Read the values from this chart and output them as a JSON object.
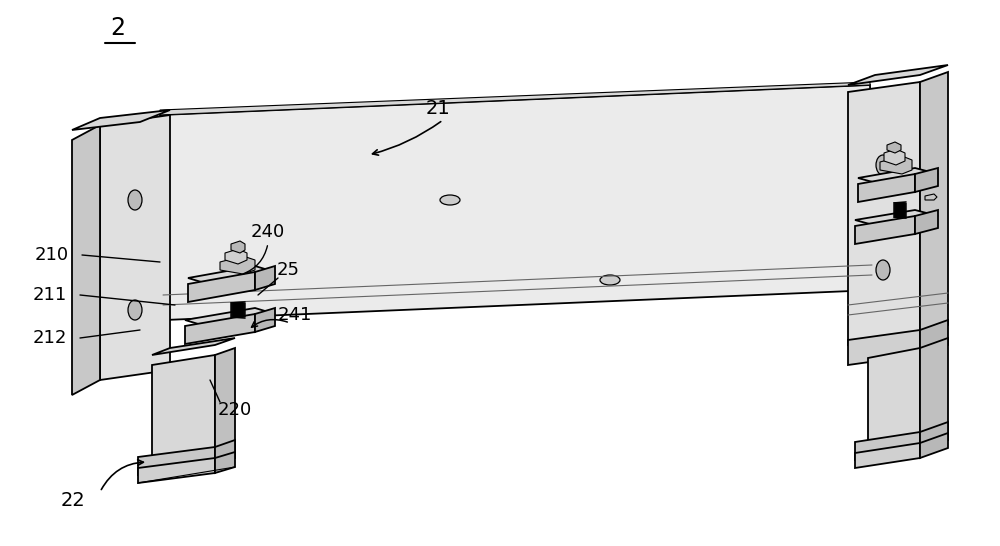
{
  "bg_color": "#ffffff",
  "lw_main": 1.3,
  "lw_thin": 0.8,
  "colors": {
    "light": "#e8e8e8",
    "mid": "#d0d0d0",
    "dark": "#b0b0b0",
    "darker": "#909090",
    "white": "#f5f5f5"
  }
}
